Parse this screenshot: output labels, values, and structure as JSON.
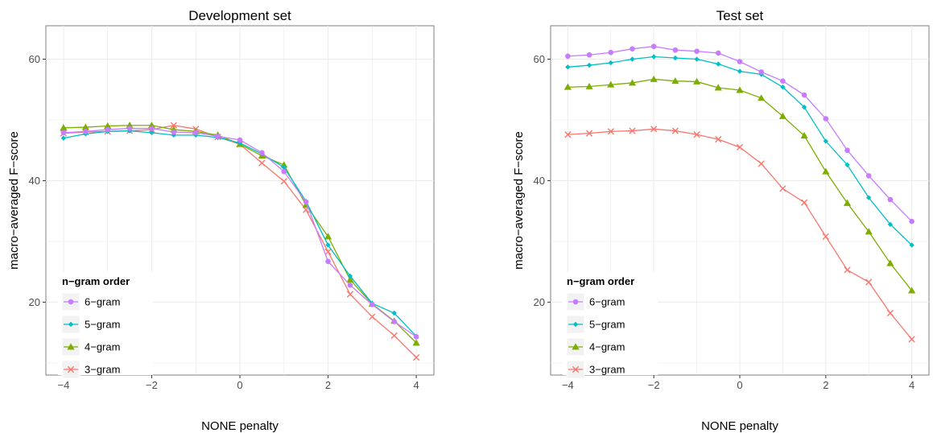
{
  "chart_data": [
    {
      "type": "line",
      "title": "Development set",
      "xlabel": "NONE penalty",
      "ylabel": "macro−averaged F−score",
      "x": [
        -4,
        -3.5,
        -3,
        -2.5,
        -2,
        -1.5,
        -1,
        -0.5,
        0,
        0.5,
        1,
        1.5,
        2,
        2.5,
        3,
        3.5,
        4
      ],
      "xlim": [
        -4.4,
        4.4
      ],
      "ylim": [
        8,
        65.5
      ],
      "xticks": [
        -4,
        -2,
        0,
        2,
        4
      ],
      "xtick_labels": [
        "−4",
        "−2",
        "0",
        "2",
        "4"
      ],
      "yticks": [
        20,
        40,
        60
      ],
      "ytick_labels": [
        "20",
        "40",
        "60"
      ],
      "grid": true,
      "legend": {
        "title": "n−gram order",
        "position": "bottom-left",
        "entries": [
          "6−gram",
          "5−gram",
          "4−gram",
          "3−gram"
        ]
      },
      "series": [
        {
          "name": "6−gram",
          "color": "#C77CFF",
          "marker": "circle",
          "values": [
            47.9,
            48.1,
            48.4,
            48.6,
            48.6,
            48.0,
            47.9,
            47.3,
            46.7,
            44.6,
            41.5,
            36.5,
            26.7,
            22.8,
            19.6,
            16.8,
            14.3
          ]
        },
        {
          "name": "5−gram",
          "color": "#00BFC4",
          "marker": "diamond",
          "values": [
            47.0,
            47.7,
            48.1,
            48.2,
            47.9,
            47.5,
            47.5,
            47.1,
            46.2,
            44.4,
            42.2,
            36.6,
            29.4,
            24.3,
            19.8,
            18.2,
            14.4
          ]
        },
        {
          "name": "4−gram",
          "color": "#7CAE00",
          "marker": "triangle",
          "values": [
            48.7,
            48.8,
            49.0,
            49.1,
            49.1,
            48.4,
            48.1,
            47.5,
            46.0,
            44.1,
            42.6,
            36.0,
            30.8,
            23.7,
            19.7,
            16.9,
            13.3
          ]
        },
        {
          "name": "3−gram",
          "color": "#F8766D",
          "marker": "x",
          "values": [
            47.8,
            48.0,
            48.1,
            48.2,
            48.4,
            49.1,
            48.5,
            47.2,
            46.0,
            42.9,
            39.9,
            35.2,
            28.3,
            21.3,
            17.6,
            14.5,
            10.9
          ]
        }
      ]
    },
    {
      "type": "line",
      "title": "Test set",
      "xlabel": "NONE penalty",
      "ylabel": "macro−averaged F−score",
      "x": [
        -4,
        -3.5,
        -3,
        -2.5,
        -2,
        -1.5,
        -1,
        -0.5,
        0,
        0.5,
        1,
        1.5,
        2,
        2.5,
        3,
        3.5,
        4
      ],
      "xlim": [
        -4.4,
        4.4
      ],
      "ylim": [
        8,
        65.5
      ],
      "xticks": [
        -4,
        -2,
        0,
        2,
        4
      ],
      "xtick_labels": [
        "−4",
        "−2",
        "0",
        "2",
        "4"
      ],
      "yticks": [
        20,
        40,
        60
      ],
      "ytick_labels": [
        "20",
        "40",
        "60"
      ],
      "grid": true,
      "legend": {
        "title": "n−gram order",
        "position": "bottom-left",
        "entries": [
          "6−gram",
          "5−gram",
          "4−gram",
          "3−gram"
        ]
      },
      "series": [
        {
          "name": "6−gram",
          "color": "#C77CFF",
          "marker": "circle",
          "values": [
            60.5,
            60.7,
            61.1,
            61.7,
            62.1,
            61.5,
            61.3,
            61.0,
            59.6,
            57.9,
            56.4,
            54.1,
            50.2,
            45.0,
            40.8,
            36.9,
            33.3
          ]
        },
        {
          "name": "5−gram",
          "color": "#00BFC4",
          "marker": "diamond",
          "values": [
            58.7,
            59.0,
            59.4,
            60.0,
            60.4,
            60.2,
            60.0,
            59.2,
            58.0,
            57.5,
            55.4,
            52.1,
            46.5,
            42.6,
            37.2,
            32.8,
            29.4
          ]
        },
        {
          "name": "4−gram",
          "color": "#7CAE00",
          "marker": "triangle",
          "values": [
            55.4,
            55.5,
            55.8,
            56.1,
            56.7,
            56.4,
            56.3,
            55.3,
            54.9,
            53.6,
            50.6,
            47.4,
            41.5,
            36.3,
            31.6,
            26.4,
            21.9
          ]
        },
        {
          "name": "3−gram",
          "color": "#F8766D",
          "marker": "x",
          "values": [
            47.6,
            47.8,
            48.1,
            48.2,
            48.5,
            48.2,
            47.6,
            46.8,
            45.5,
            42.8,
            38.7,
            36.4,
            30.8,
            25.3,
            23.3,
            18.2,
            13.9
          ]
        }
      ]
    }
  ]
}
